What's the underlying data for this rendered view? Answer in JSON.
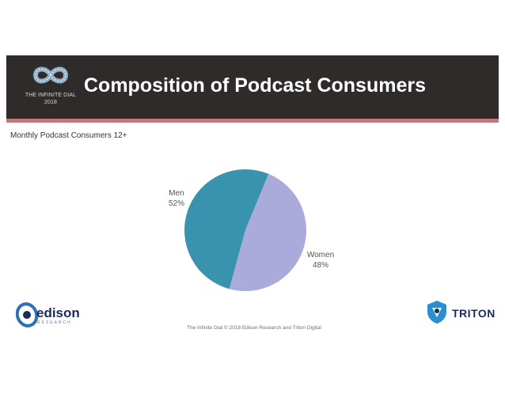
{
  "header": {
    "title": "Composition of Podcast Consumers",
    "brand_line1": "THE INFINITE DIAL",
    "brand_line2": "2018"
  },
  "subtitle": "Monthly Podcast Consumers 12+",
  "footer": {
    "credit": "The Infinite Dial   © 2018 Edison Research and Triton Digital",
    "edison_name": "edison",
    "edison_sub": "RESEARCH",
    "triton_name": "TRITON"
  },
  "colors": {
    "header_bg": "#2f2b2b",
    "accent_bar": "#c07a7a",
    "men": "#3a93ae",
    "women": "#aaabdb"
  },
  "icons": [
    "infinity-icon",
    "edison-e-icon",
    "triton-shield-icon"
  ],
  "chart_data": {
    "type": "pie",
    "title": "",
    "categories": [
      "Men",
      "Women"
    ],
    "values": [
      52,
      48
    ],
    "labels": [
      "52%",
      "48%"
    ],
    "colors": [
      "#3a93ae",
      "#aaabdb"
    ],
    "legend": "none"
  }
}
